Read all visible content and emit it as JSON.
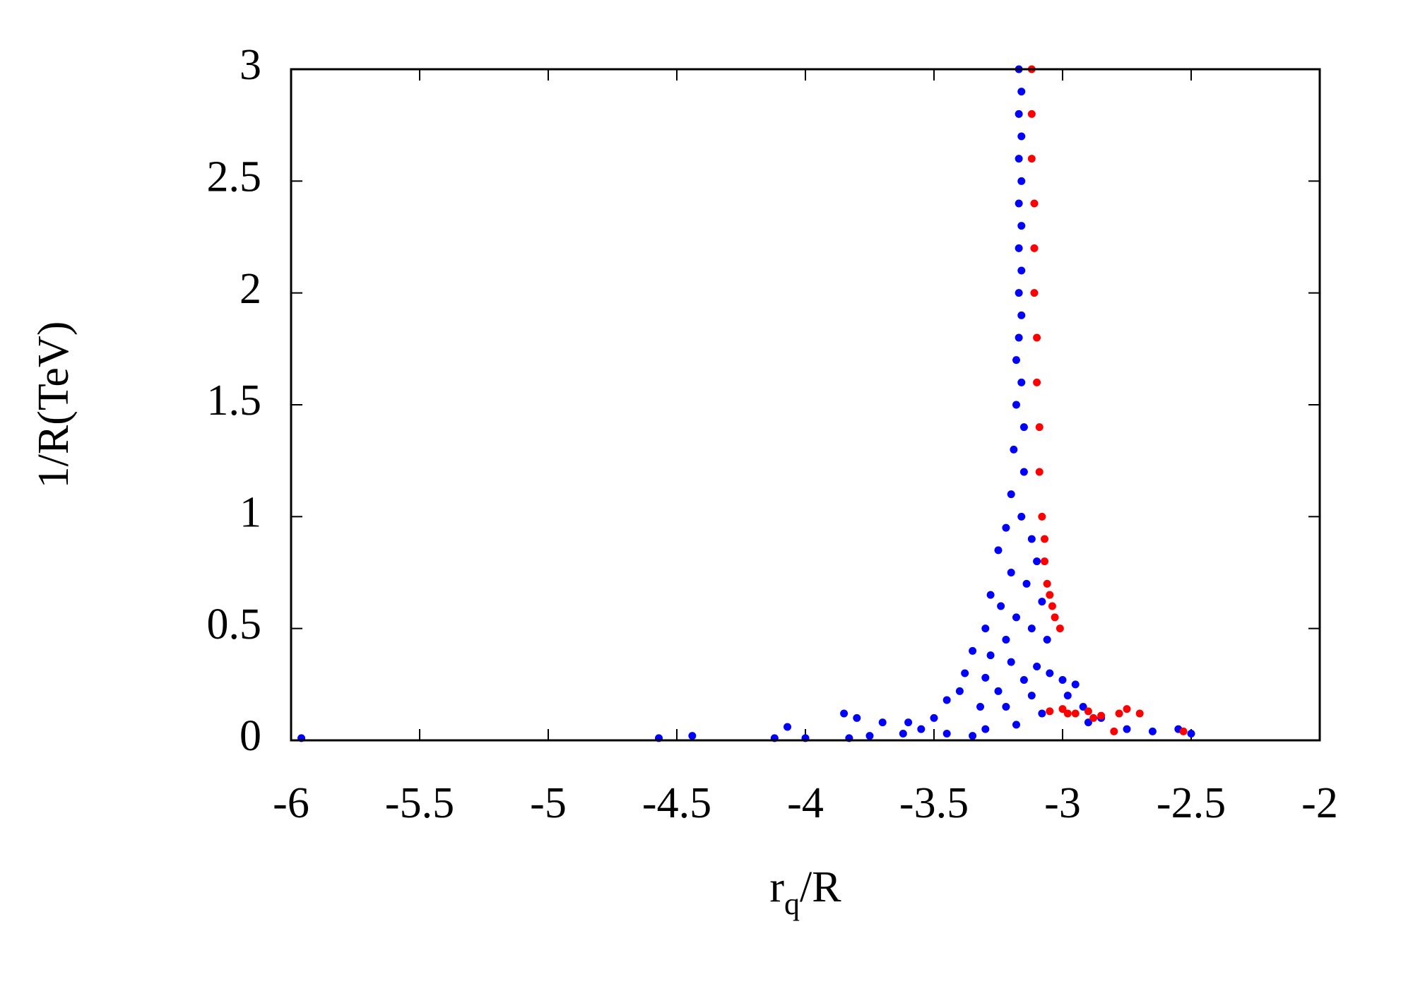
{
  "chart_data": {
    "type": "scatter",
    "xlabel": [
      "r",
      "q",
      "/R"
    ],
    "ylabel": "1/R(TeV)",
    "xlim": [
      -6,
      -2
    ],
    "xticks": [
      -6,
      -5.5,
      -5,
      -4.5,
      -4,
      -3.5,
      -3,
      -2.5,
      -2
    ],
    "ylim": [
      0,
      3
    ],
    "yticks": [
      0,
      0.5,
      1,
      1.5,
      2,
      2.5,
      3
    ],
    "series": [
      {
        "color": "#0000ff",
        "x": [
          -3.17,
          -3.16,
          -3.17,
          -3.16,
          -3.17,
          -3.16,
          -3.17,
          -3.16,
          -3.17,
          -3.16,
          -3.17,
          -3.16,
          -3.17,
          -3.18,
          -3.16,
          -3.18,
          -3.15,
          -3.19,
          -3.15,
          -3.2,
          -3.16,
          -3.22,
          -3.12,
          -3.25,
          -3.1,
          -3.2,
          -3.14,
          -3.28,
          -3.08,
          -3.24,
          -3.18,
          -3.3,
          -3.12,
          -3.22,
          -3.06,
          -3.35,
          -3.28,
          -3.2,
          -3.1,
          -3.05,
          -3.38,
          -3.3,
          -3.15,
          -3.0,
          -2.95,
          -3.25,
          -3.4,
          -3.12,
          -2.98,
          -3.45,
          -3.32,
          -3.22,
          -3.08,
          -2.92,
          -2.85,
          -3.5,
          -3.6,
          -3.7,
          -3.8,
          -3.85,
          -3.55,
          -3.3,
          -3.18,
          -2.9,
          -2.75,
          -2.65,
          -2.55,
          -2.5,
          -3.35,
          -3.45,
          -3.62,
          -3.75,
          -5.96,
          -4.57,
          -4.44,
          -4.12,
          -4.07,
          -4.0,
          -3.83
        ],
        "y": [
          3.0,
          2.9,
          2.8,
          2.7,
          2.6,
          2.5,
          2.4,
          2.3,
          2.2,
          2.1,
          2.0,
          1.9,
          1.8,
          1.7,
          1.6,
          1.5,
          1.4,
          1.3,
          1.2,
          1.1,
          1.0,
          0.95,
          0.9,
          0.85,
          0.8,
          0.75,
          0.7,
          0.65,
          0.62,
          0.6,
          0.55,
          0.5,
          0.5,
          0.45,
          0.45,
          0.4,
          0.38,
          0.35,
          0.33,
          0.3,
          0.3,
          0.28,
          0.27,
          0.27,
          0.25,
          0.22,
          0.22,
          0.2,
          0.2,
          0.18,
          0.15,
          0.15,
          0.12,
          0.15,
          0.1,
          0.1,
          0.08,
          0.08,
          0.1,
          0.12,
          0.05,
          0.05,
          0.07,
          0.08,
          0.05,
          0.04,
          0.05,
          0.03,
          0.02,
          0.03,
          0.03,
          0.02,
          0.01,
          0.01,
          0.02,
          0.01,
          0.06,
          0.01,
          0.01
        ]
      },
      {
        "color": "#ff0000",
        "x": [
          -3.12,
          -3.12,
          -3.12,
          -3.11,
          -3.11,
          -3.11,
          -3.1,
          -3.1,
          -3.09,
          -3.09,
          -3.08,
          -3.07,
          -3.07,
          -3.06,
          -3.04,
          -3.01,
          -3.03,
          -3.05,
          -3.05,
          -3.0,
          -2.95,
          -2.9,
          -2.85,
          -2.8,
          -2.75,
          -2.7,
          -2.78,
          -2.88,
          -2.98,
          -2.53
        ],
        "y": [
          3.0,
          2.8,
          2.6,
          2.4,
          2.2,
          2.0,
          1.8,
          1.6,
          1.4,
          1.2,
          1.0,
          0.9,
          0.8,
          0.7,
          0.6,
          0.5,
          0.55,
          0.65,
          0.13,
          0.14,
          0.12,
          0.13,
          0.11,
          0.04,
          0.14,
          0.12,
          0.12,
          0.1,
          0.12,
          0.04
        ]
      }
    ]
  }
}
